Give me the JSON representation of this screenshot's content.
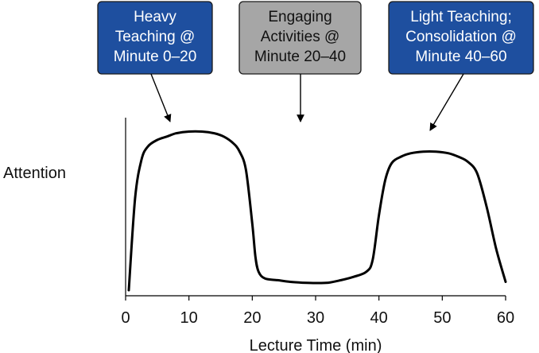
{
  "chart_data": {
    "type": "line",
    "title": "",
    "xlabel": "Lecture Time (min)",
    "ylabel": "Attention",
    "xlim": [
      0,
      60
    ],
    "x_ticks": [
      "0",
      "10",
      "20",
      "30",
      "40",
      "50",
      "60"
    ],
    "grid": false,
    "series": [
      {
        "x": [
          0.5,
          1.5,
          2.5,
          3.5,
          5,
          6.5,
          8,
          10,
          12,
          14,
          15.5,
          17,
          18,
          19,
          20,
          20.5,
          21,
          22,
          24,
          26,
          28,
          30,
          32,
          34,
          36,
          38,
          39,
          40,
          41,
          42,
          43.5,
          45,
          47,
          49,
          51,
          52.5,
          54,
          55.5,
          57,
          58.5,
          60
        ],
        "y": [
          0.0,
          0.55,
          0.78,
          0.86,
          0.9,
          0.92,
          0.94,
          0.95,
          0.95,
          0.94,
          0.92,
          0.88,
          0.83,
          0.72,
          0.4,
          0.2,
          0.11,
          0.07,
          0.06,
          0.05,
          0.045,
          0.043,
          0.045,
          0.06,
          0.08,
          0.11,
          0.18,
          0.45,
          0.66,
          0.76,
          0.8,
          0.82,
          0.83,
          0.83,
          0.82,
          0.8,
          0.77,
          0.7,
          0.5,
          0.25,
          0.05
        ]
      }
    ],
    "annotations": [
      {
        "lines": [
          "Heavy",
          "Teaching @",
          "Minute 0–20"
        ],
        "fill": "#1e4f9f",
        "text_color": "#ffffff",
        "points_to_x": 7
      },
      {
        "lines": [
          "Engaging",
          "Activities @",
          "Minute 20–40"
        ],
        "fill": "#a6a6a6",
        "text_color": "#111111",
        "points_to_x": 27.5
      },
      {
        "lines": [
          "Light Teaching;",
          "Consolidation @",
          "Minute 40–60"
        ],
        "fill": "#1e4f9f",
        "text_color": "#ffffff",
        "points_to_x": 48
      }
    ]
  }
}
